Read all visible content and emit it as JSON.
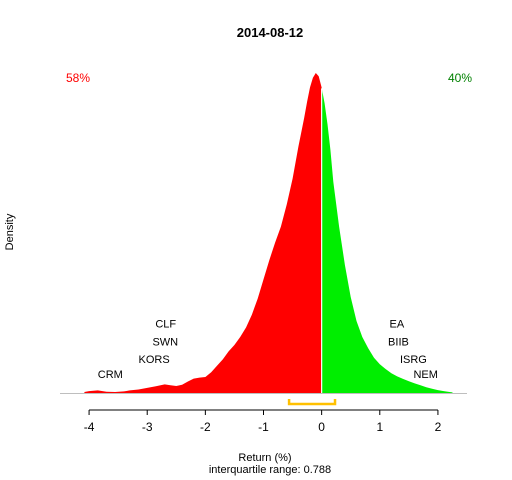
{
  "chart_data": {
    "type": "area",
    "title": "2014-08-12",
    "xlabel": "Return (%)",
    "ylabel": "Density",
    "subtitle": "interquartile range: 0.788",
    "xlim": [
      -4.5,
      2.5
    ],
    "ylim": [
      0,
      1
    ],
    "x_ticks": [
      -4,
      -3,
      -2,
      -1,
      0,
      1,
      2
    ],
    "grid": false,
    "split_at": 0,
    "left_pct_label": "58%",
    "right_pct_label": "40%",
    "colors": {
      "negative": "#ff0000",
      "positive": "#00ee00",
      "split_line": "#ffffff",
      "iqr_bracket": "#ffc000",
      "baseline": "#bebebe",
      "left_label": "#ff0000",
      "right_label": "#008000",
      "text": "#000000"
    },
    "iqr": [
      -0.56,
      0.23
    ],
    "density": {
      "x": [
        -4.08,
        -4.0,
        -3.85,
        -3.7,
        -3.55,
        -3.4,
        -3.3,
        -3.15,
        -3.0,
        -2.85,
        -2.7,
        -2.6,
        -2.5,
        -2.4,
        -2.3,
        -2.2,
        -2.1,
        -2.0,
        -1.9,
        -1.8,
        -1.7,
        -1.6,
        -1.5,
        -1.4,
        -1.3,
        -1.2,
        -1.1,
        -1.0,
        -0.9,
        -0.8,
        -0.7,
        -0.6,
        -0.5,
        -0.4,
        -0.3,
        -0.25,
        -0.2,
        -0.15,
        -0.1,
        -0.05,
        0.0,
        0.05,
        0.1,
        0.15,
        0.2,
        0.3,
        0.4,
        0.5,
        0.6,
        0.7,
        0.8,
        0.9,
        1.0,
        1.1,
        1.2,
        1.3,
        1.4,
        1.5,
        1.6,
        1.7,
        1.8,
        1.9,
        2.0,
        2.1,
        2.2,
        2.25
      ],
      "y": [
        0.003,
        0.006,
        0.008,
        0.004,
        0.003,
        0.005,
        0.008,
        0.011,
        0.016,
        0.021,
        0.027,
        0.024,
        0.022,
        0.026,
        0.036,
        0.045,
        0.048,
        0.05,
        0.065,
        0.085,
        0.105,
        0.13,
        0.15,
        0.175,
        0.205,
        0.245,
        0.295,
        0.355,
        0.415,
        0.47,
        0.52,
        0.59,
        0.67,
        0.77,
        0.86,
        0.91,
        0.955,
        0.985,
        1.0,
        0.99,
        0.955,
        0.905,
        0.84,
        0.76,
        0.66,
        0.52,
        0.4,
        0.3,
        0.225,
        0.175,
        0.14,
        0.11,
        0.09,
        0.075,
        0.062,
        0.052,
        0.044,
        0.037,
        0.03,
        0.024,
        0.018,
        0.013,
        0.009,
        0.006,
        0.003,
        0.002
      ]
    },
    "annotations_left": [
      {
        "label": "CLF",
        "x": -2.86,
        "y": 0.205
      },
      {
        "label": "SWN",
        "x": -2.91,
        "y": 0.149
      },
      {
        "label": "KORS",
        "x": -3.15,
        "y": 0.093
      },
      {
        "label": "CRM",
        "x": -3.85,
        "y": 0.047
      }
    ],
    "annotations_right": [
      {
        "label": "EA",
        "x": 1.42,
        "y": 0.205
      },
      {
        "label": "BIIB",
        "x": 1.5,
        "y": 0.149
      },
      {
        "label": "ISRG",
        "x": 1.81,
        "y": 0.093
      },
      {
        "label": "NEM",
        "x": 2.0,
        "y": 0.047
      }
    ]
  }
}
